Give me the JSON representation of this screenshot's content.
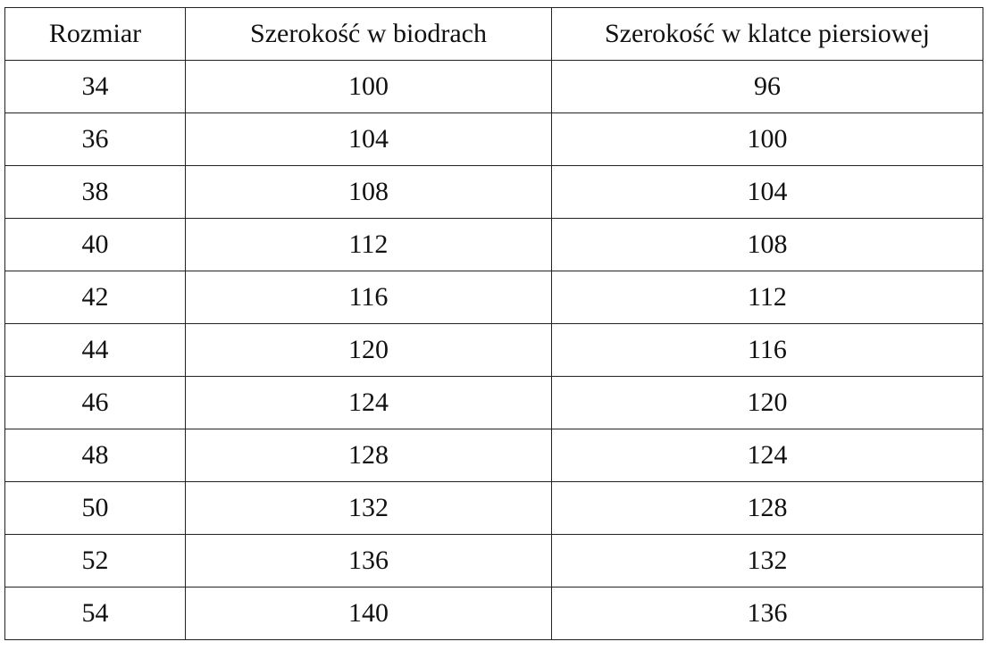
{
  "table": {
    "header": [
      "Rozmiar",
      "Szerokość w biodrach",
      "Szerokość w klatce piersiowej"
    ],
    "rows": [
      [
        34,
        100,
        96
      ],
      [
        36,
        104,
        100
      ],
      [
        38,
        108,
        104
      ],
      [
        40,
        112,
        108
      ],
      [
        42,
        116,
        112
      ],
      [
        44,
        120,
        116
      ],
      [
        46,
        124,
        120
      ],
      [
        48,
        128,
        124
      ],
      [
        50,
        132,
        128
      ],
      [
        52,
        136,
        132
      ],
      [
        54,
        140,
        136
      ]
    ]
  }
}
